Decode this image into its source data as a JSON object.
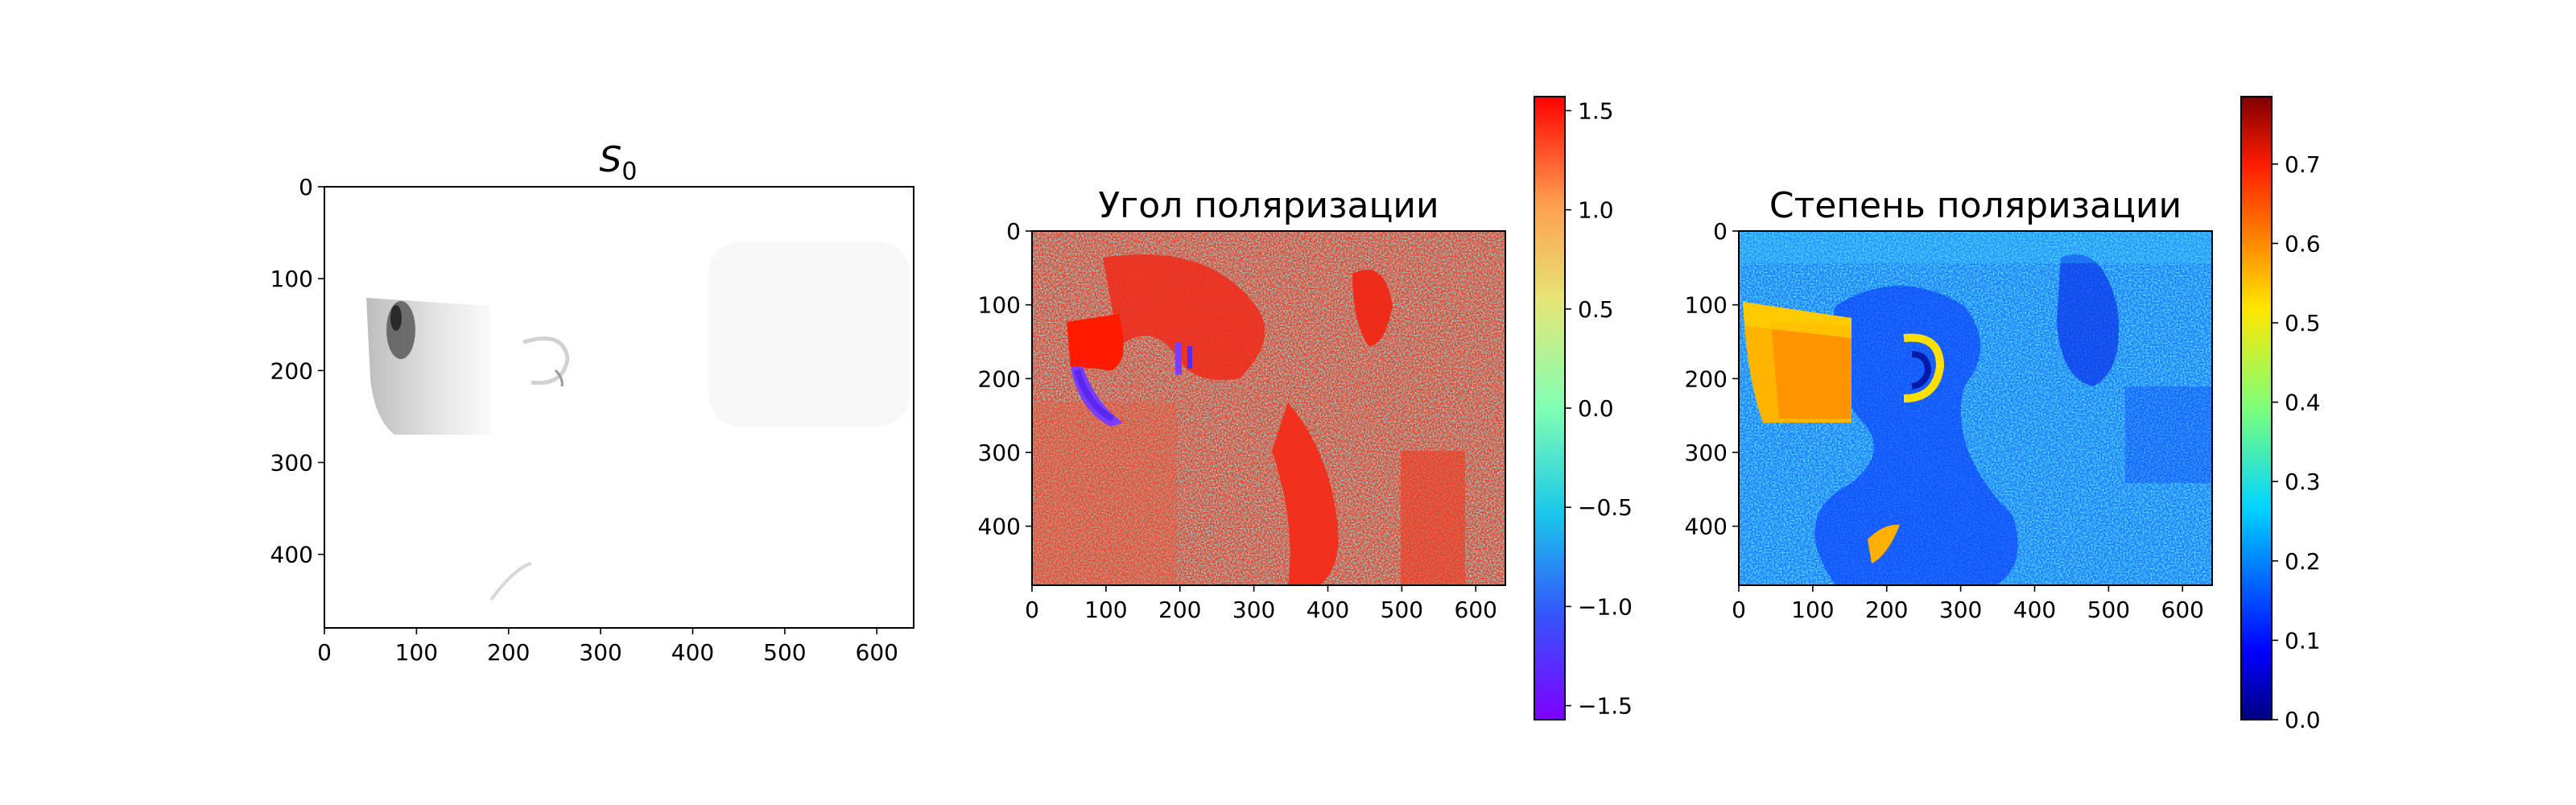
{
  "chart_data": [
    {
      "type": "heatmap",
      "title": "S",
      "title_subscript": "0",
      "colormap": "gray_r",
      "x_ticks": [
        0,
        100,
        200,
        300,
        400,
        500,
        600
      ],
      "y_ticks": [
        0,
        100,
        200,
        300,
        400
      ],
      "xlim": [
        0,
        640
      ],
      "ylim": [
        480,
        0
      ],
      "colorbar": null
    },
    {
      "type": "heatmap",
      "title": "Угол поляризации",
      "colormap": "rainbow",
      "x_ticks": [
        0,
        100,
        200,
        300,
        400,
        500,
        600
      ],
      "y_ticks": [
        0,
        100,
        200,
        300,
        400
      ],
      "xlim": [
        0,
        640
      ],
      "ylim": [
        480,
        0
      ],
      "colorbar": {
        "vmin": -1.5708,
        "vmax": 1.5708,
        "ticks": [
          1.5,
          1.0,
          0.5,
          0.0,
          -0.5,
          -1.0,
          -1.5
        ],
        "tick_labels": [
          "1.5",
          "1.0",
          "0.5",
          "0.0",
          "−0.5",
          "−1.0",
          "−1.5"
        ]
      }
    },
    {
      "type": "heatmap",
      "title": "Степень поляризации",
      "colormap": "jet",
      "x_ticks": [
        0,
        100,
        200,
        300,
        400,
        500,
        600
      ],
      "y_ticks": [
        0,
        100,
        200,
        300,
        400
      ],
      "xlim": [
        0,
        640
      ],
      "ylim": [
        480,
        0
      ],
      "colorbar": {
        "vmin": 0.0,
        "vmax": 0.785,
        "ticks": [
          0.7,
          0.6,
          0.5,
          0.4,
          0.3,
          0.2,
          0.1,
          0.0
        ],
        "tick_labels": [
          "0.7",
          "0.6",
          "0.5",
          "0.4",
          "0.3",
          "0.2",
          "0.1",
          "0.0"
        ]
      }
    }
  ]
}
